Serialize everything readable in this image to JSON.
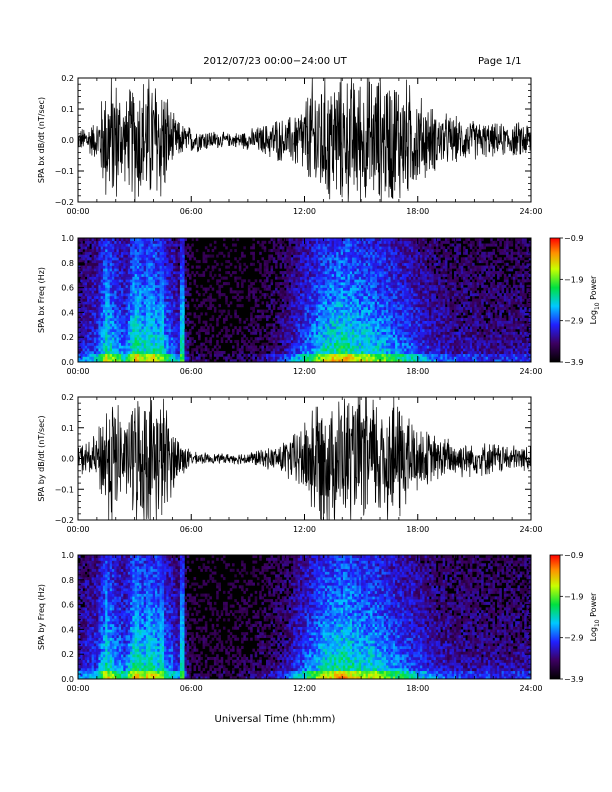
{
  "header": {
    "title": "2012/07/23  00:00−24:00 UT",
    "page": "Page 1/1"
  },
  "footer": {
    "xlabel": "Universal Time (hh:mm)"
  },
  "chart_data": [
    {
      "type": "line",
      "ylabel": "SPA bx dB/dt (nT/sec)",
      "ylim": [
        -0.2,
        0.2
      ],
      "yticks": [
        "0.2",
        "0.1",
        "0.0",
        "−0.1",
        "−0.2"
      ],
      "xlim": [
        "00:00",
        "24:00"
      ],
      "xticks": [
        "00:00",
        "06:00",
        "12:00",
        "18:00",
        "24:00"
      ],
      "series": [
        {
          "hours": [
            0,
            1,
            1.5,
            2,
            2.5,
            3,
            3.5,
            4,
            4.5,
            5,
            5.5,
            6,
            7,
            8,
            9,
            10,
            10.5,
            11,
            11.5,
            12,
            12.5,
            13,
            13.5,
            14,
            14.5,
            15,
            15.5,
            16,
            16.5,
            17,
            17.5,
            18,
            19,
            20,
            21,
            22,
            23,
            24
          ],
          "amplitude": [
            0.03,
            0.06,
            0.2,
            0.2,
            0.12,
            0.2,
            0.2,
            0.2,
            0.2,
            0.08,
            0.05,
            0.04,
            0.03,
            0.02,
            0.03,
            0.05,
            0.07,
            0.06,
            0.09,
            0.12,
            0.2,
            0.2,
            0.2,
            0.2,
            0.2,
            0.2,
            0.2,
            0.2,
            0.2,
            0.2,
            0.18,
            0.14,
            0.09,
            0.07,
            0.06,
            0.05,
            0.05,
            0.06
          ]
        }
      ]
    },
    {
      "type": "heatmap",
      "ylabel": "SPA bx Freq (Hz)",
      "ylim": [
        0.0,
        1.0
      ],
      "yticks": [
        "1.0",
        "0.8",
        "0.6",
        "0.4",
        "0.2",
        "0.0"
      ],
      "xlim": [
        "00:00",
        "24:00"
      ],
      "xticks": [
        "00:00",
        "06:00",
        "12:00",
        "18:00",
        "24:00"
      ],
      "colorbar": {
        "label": "Log",
        "label_sub": "10",
        "label_tail": " Power",
        "min": -3.9,
        "max": -0.9,
        "ticks": [
          "−0.9",
          "−1.9",
          "−2.9",
          "−3.9"
        ]
      }
    },
    {
      "type": "line",
      "ylabel": "SPA by dB/dt (nT/sec)",
      "ylim": [
        -0.2,
        0.2
      ],
      "yticks": [
        "0.2",
        "0.1",
        "0.0",
        "−0.1",
        "−0.2"
      ],
      "xlim": [
        "00:00",
        "24:00"
      ],
      "xticks": [
        "00:00",
        "06:00",
        "12:00",
        "18:00",
        "24:00"
      ],
      "series": [
        {
          "hours": [
            0,
            1,
            1.5,
            2,
            2.5,
            3,
            3.5,
            4,
            4.5,
            5,
            5.5,
            6,
            7,
            8,
            9,
            10,
            10.5,
            11,
            11.5,
            12,
            12.5,
            13,
            13.5,
            14,
            14.5,
            15,
            15.5,
            16,
            16.5,
            17,
            17.5,
            18,
            19,
            20,
            21,
            22,
            23,
            24
          ],
          "amplitude": [
            0.04,
            0.07,
            0.2,
            0.2,
            0.1,
            0.2,
            0.2,
            0.2,
            0.2,
            0.1,
            0.06,
            0.02,
            0.015,
            0.015,
            0.02,
            0.03,
            0.04,
            0.06,
            0.08,
            0.12,
            0.2,
            0.2,
            0.2,
            0.2,
            0.2,
            0.2,
            0.2,
            0.2,
            0.2,
            0.2,
            0.15,
            0.1,
            0.07,
            0.06,
            0.05,
            0.05,
            0.04,
            0.04
          ]
        }
      ]
    },
    {
      "type": "heatmap",
      "ylabel": "SPA by Freq (Hz)",
      "ylim": [
        0.0,
        1.0
      ],
      "yticks": [
        "1.0",
        "0.8",
        "0.6",
        "0.4",
        "0.2",
        "0.0"
      ],
      "xlim": [
        "00:00",
        "24:00"
      ],
      "xticks": [
        "00:00",
        "06:00",
        "12:00",
        "18:00",
        "24:00"
      ],
      "colorbar": {
        "label": "Log",
        "label_sub": "10",
        "label_tail": " Power",
        "min": -3.9,
        "max": -0.9,
        "ticks": [
          "−0.9",
          "−1.9",
          "−2.9",
          "−3.9"
        ]
      }
    }
  ],
  "spectral_activity": {
    "hours": [
      0,
      1,
      1.5,
      2,
      2.5,
      3,
      3.5,
      4,
      4.5,
      5,
      5.5,
      6,
      7,
      8,
      9,
      10,
      10.5,
      11,
      11.5,
      12,
      12.5,
      13,
      13.5,
      14,
      14.5,
      15,
      15.5,
      16,
      16.5,
      17,
      17.5,
      18,
      19,
      20,
      21,
      22,
      23,
      24
    ],
    "level": [
      0.35,
      0.45,
      0.75,
      0.6,
      0.5,
      0.8,
      0.7,
      0.75,
      0.6,
      0.5,
      0.35,
      0.15,
      0.12,
      0.12,
      0.15,
      0.2,
      0.25,
      0.3,
      0.4,
      0.5,
      0.6,
      0.7,
      0.75,
      0.8,
      0.75,
      0.7,
      0.7,
      0.65,
      0.6,
      0.55,
      0.5,
      0.45,
      0.35,
      0.3,
      0.3,
      0.28,
      0.28,
      0.3
    ],
    "bright_stripes_hours": [
      1.5,
      3.1,
      3.7,
      4.4,
      5.5
    ]
  }
}
